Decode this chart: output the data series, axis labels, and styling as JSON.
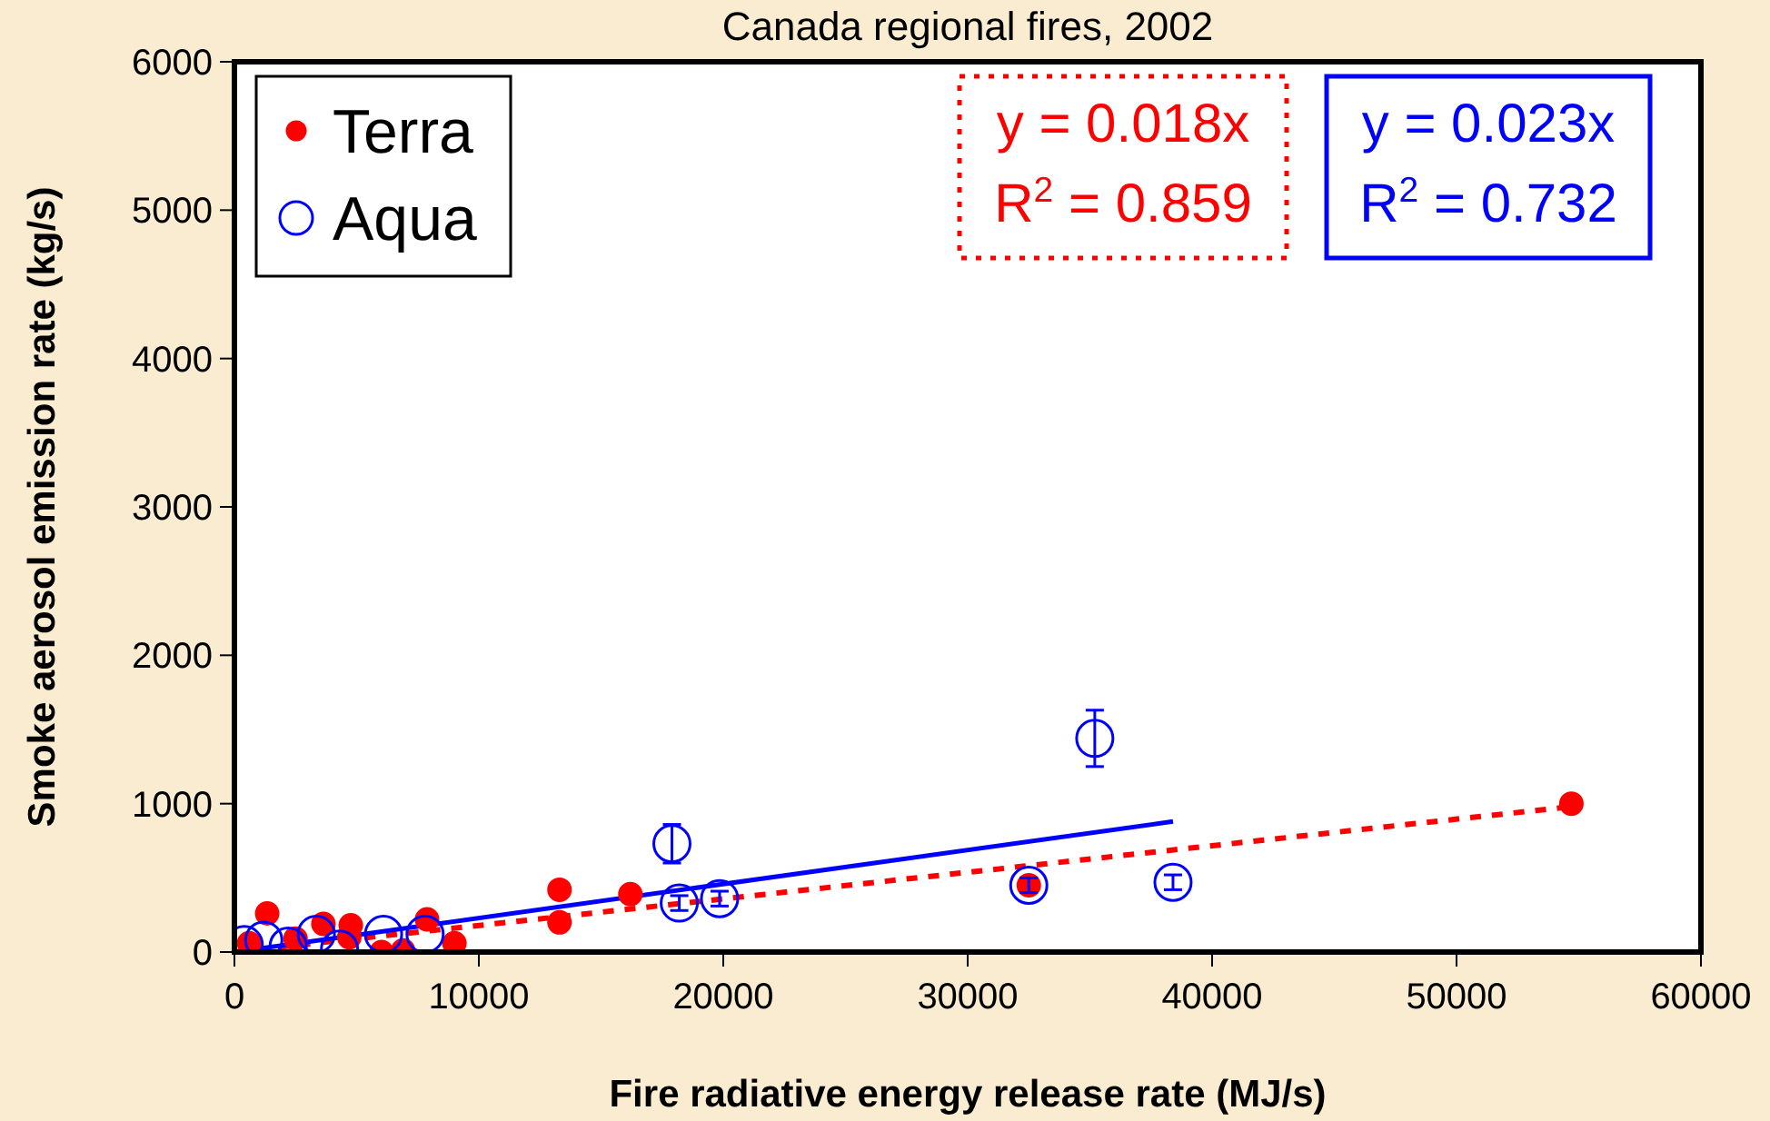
{
  "chart_data": {
    "type": "scatter",
    "title": "Canada regional fires, 2002",
    "xlabel": "Fire radiative energy release rate (MJ/s)",
    "ylabel": "Smoke aerosol emission rate (kg/s)",
    "xlim": [
      0,
      60000
    ],
    "xticks": [
      0,
      10000,
      20000,
      30000,
      40000,
      50000,
      60000
    ],
    "ylim": [
      0,
      6000
    ],
    "yticks": [
      0,
      1000,
      2000,
      3000,
      4000,
      5000,
      6000
    ],
    "legend": "top left",
    "grid": false,
    "annotations": [
      "y = 0.018x\nR$^{2}$ = 0.859",
      "y = 0.023x\nR$^{2}$ = 0.732"
    ],
    "series": [
      {
        "name": "Terra",
        "color": "#ff0000",
        "marker": "circle",
        "x": [
          600,
          1340,
          2500,
          3640,
          4700,
          4760,
          6020,
          6900,
          7880,
          9000,
          13300,
          13300,
          16200,
          32500,
          54700
        ],
        "values": [
          60,
          260,
          90,
          190,
          100,
          180,
          0,
          10,
          220,
          60,
          420,
          200,
          390,
          450,
          1000
        ]
      },
      {
        "name": "Aqua",
        "color": "#0000ff",
        "marker": "circle",
        "x": [
          400,
          1200,
          2200,
          3350,
          4300,
          6100,
          7800,
          17900,
          18200,
          19850,
          32500,
          35200,
          38400
        ],
        "values": [
          50,
          80,
          40,
          120,
          20,
          120,
          120,
          730,
          330,
          360,
          450,
          1440,
          470
        ],
        "errors": [
          null,
          null,
          null,
          null,
          null,
          null,
          null,
          130,
          50,
          50,
          50,
          190,
          50
        ]
      },
      {
        "type": "line",
        "color": "#ff0000",
        "marker": "none",
        "line_style": "dashed",
        "x": [
          0,
          54700
        ],
        "values": [
          0,
          980
        ]
      },
      {
        "type": "line",
        "color": "#0000ff",
        "marker": "none",
        "line_style": "solid",
        "x": [
          0,
          38400
        ],
        "values": [
          0,
          880
        ]
      }
    ]
  }
}
